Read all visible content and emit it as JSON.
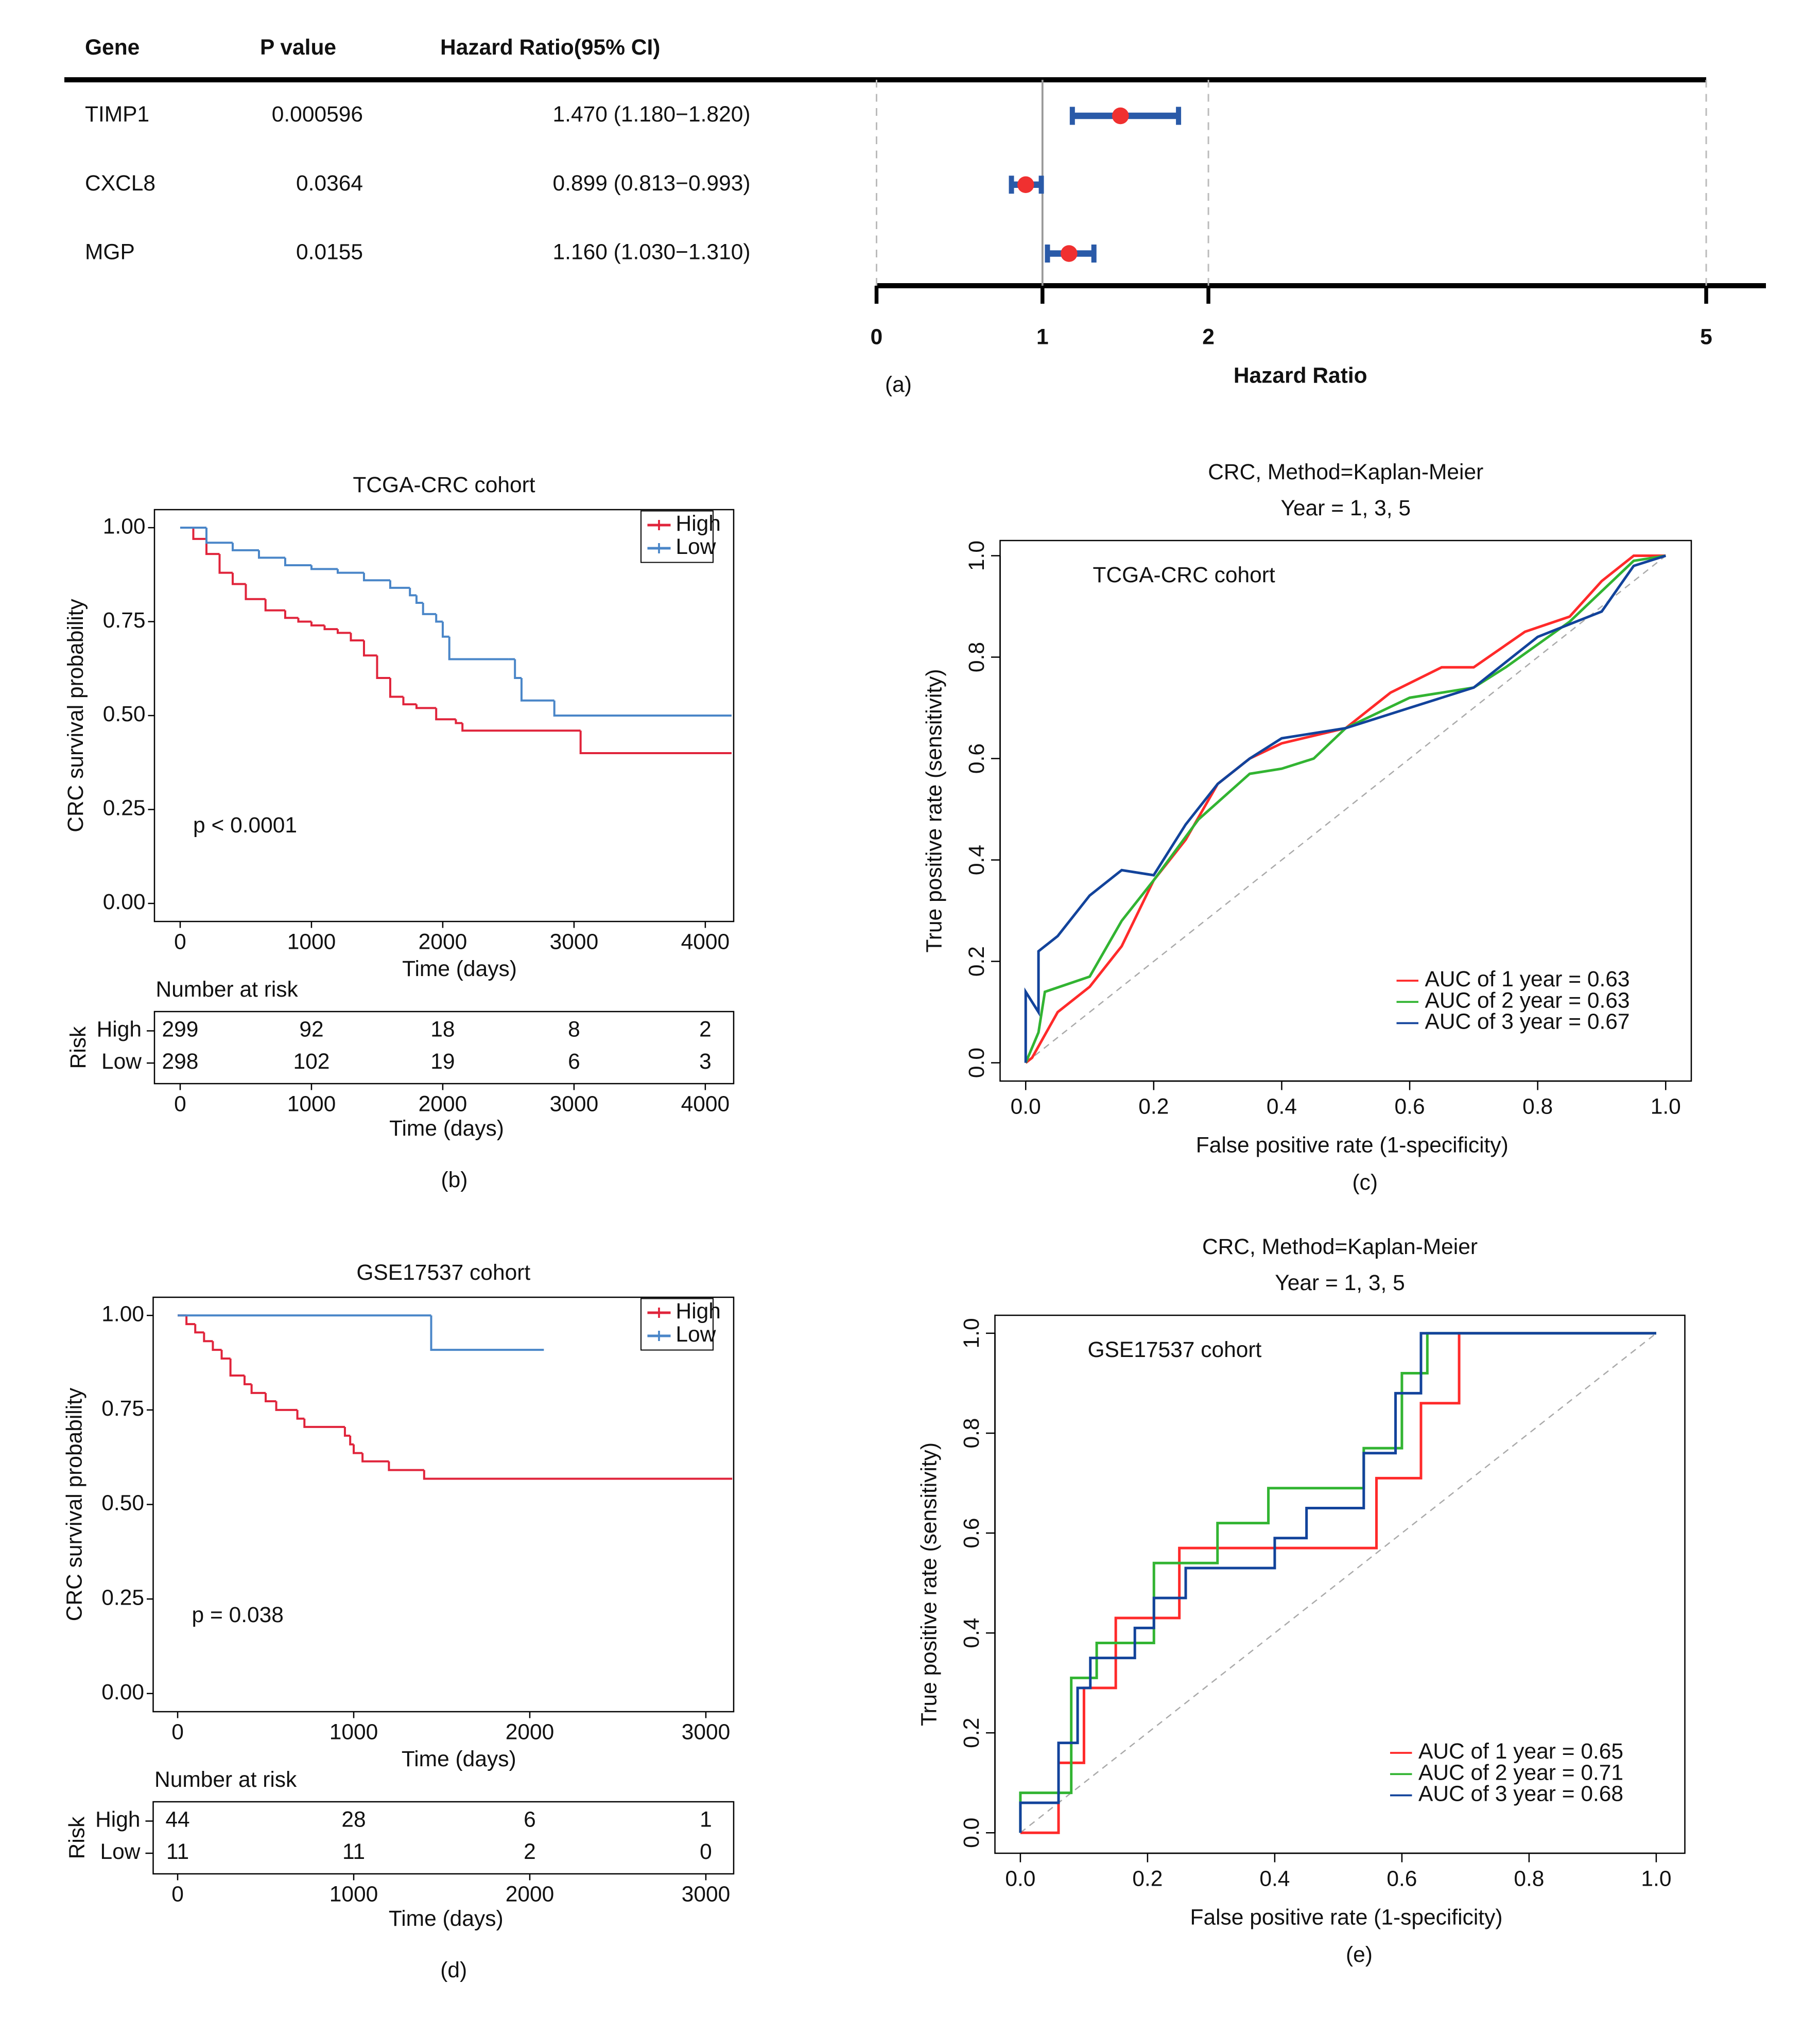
{
  "chart_data": [
    {
      "type": "forest",
      "columns": [
        "Gene",
        "P value",
        "Hazard Ratio(95% CI)"
      ],
      "categories": [
        "TIMP1",
        "CXCL8",
        "MGP"
      ],
      "p_values": [
        0.000596,
        0.0364,
        0.0155
      ],
      "values": [
        1.47,
        0.899,
        1.16
      ],
      "lower": [
        1.18,
        0.813,
        1.03
      ],
      "upper": [
        1.82,
        0.993,
        1.31
      ],
      "value_labels": [
        "1.470 (1.180−1.820)",
        "0.899 (0.813−0.993)",
        "1.160 (1.030−1.310)"
      ],
      "point_color": "#f03030",
      "ci_color": "#2a5aa8",
      "xlabel": "Hazard Ratio",
      "xlim": [
        0,
        5.36
      ],
      "xticks": [
        0,
        1,
        2,
        5
      ],
      "panel": "(a)"
    },
    {
      "type": "km",
      "title": "TCGA-CRC cohort",
      "ylabel": "CRC survival probability",
      "xlabel": "Time (days)",
      "annotation": "p < 0.0001",
      "xlim": [
        -196,
        4216
      ],
      "ylim": [
        -0.048,
        1.048
      ],
      "xticks": [
        0,
        1000,
        2000,
        3000,
        4000
      ],
      "yticks": [
        {
          "value": 0,
          "label": "0.00"
        },
        {
          "value": 0.25,
          "label": "0.25"
        },
        {
          "value": 0.5,
          "label": "0.50"
        },
        {
          "value": 0.75,
          "label": "0.75"
        },
        {
          "value": 1,
          "label": "1.00"
        }
      ],
      "series": [
        {
          "name": "High",
          "color": "#e0243b",
          "x": [
            0,
            100,
            200,
            300,
            400,
            500,
            650,
            800,
            900,
            1000,
            1100,
            1200,
            1300,
            1400,
            1500,
            1600,
            1700,
            1800,
            1950,
            2100,
            2150,
            3050,
            4200
          ],
          "values": [
            1,
            0.97,
            0.93,
            0.88,
            0.85,
            0.81,
            0.78,
            0.76,
            0.75,
            0.74,
            0.73,
            0.72,
            0.7,
            0.66,
            0.6,
            0.55,
            0.53,
            0.52,
            0.49,
            0.48,
            0.46,
            0.4,
            0.4
          ],
          "at_risk": [
            299,
            92,
            18,
            8,
            2
          ]
        },
        {
          "name": "Low",
          "color": "#4a86c8",
          "x": [
            0,
            200,
            400,
            600,
            800,
            1000,
            1200,
            1400,
            1600,
            1750,
            1800,
            1850,
            1950,
            2000,
            2050,
            2500,
            2550,
            2600,
            2850,
            4200
          ],
          "values": [
            1,
            0.96,
            0.94,
            0.92,
            0.9,
            0.89,
            0.88,
            0.86,
            0.84,
            0.82,
            0.8,
            0.77,
            0.75,
            0.71,
            0.65,
            0.65,
            0.6,
            0.54,
            0.5,
            0.5
          ],
          "at_risk": [
            298,
            102,
            19,
            6,
            3
          ]
        }
      ],
      "risk": {
        "title": "Number at risk",
        "ylabel": "Risk",
        "xlabel": "Time (days)"
      },
      "panel": "(b)"
    },
    {
      "type": "roc",
      "title": "CRC, Method=Kaplan-Meier",
      "subtitle": "Year = 1, 3, 5",
      "annotation": "TCGA-CRC cohort",
      "xlabel": "False positive rate (1-specificity)",
      "ylabel": "True positive rate (sensitivity)",
      "xlim": [
        -0.04,
        1.04
      ],
      "ylim": [
        -0.036,
        1.03
      ],
      "xticks": [
        {
          "value": 0,
          "label": "0.0"
        },
        {
          "value": 0.2,
          "label": "0.2"
        },
        {
          "value": 0.4,
          "label": "0.4"
        },
        {
          "value": 0.6,
          "label": "0.6"
        },
        {
          "value": 0.8,
          "label": "0.8"
        },
        {
          "value": 1,
          "label": "1.0"
        }
      ],
      "yticks": [
        {
          "value": 0,
          "label": "0.0"
        },
        {
          "value": 0.2,
          "label": "0.2"
        },
        {
          "value": 0.4,
          "label": "0.4"
        },
        {
          "value": 0.6,
          "label": "0.6"
        },
        {
          "value": 0.8,
          "label": "0.8"
        },
        {
          "value": 1,
          "label": "1.0"
        }
      ],
      "series": [
        {
          "name": "AUC of 1 year = 0.63",
          "color": "#ff2a2a",
          "x": [
            0,
            0.01,
            0.05,
            0.1,
            0.15,
            0.2,
            0.25,
            0.3,
            0.35,
            0.4,
            0.5,
            0.57,
            0.65,
            0.7,
            0.78,
            0.85,
            0.9,
            0.95,
            1
          ],
          "values": [
            0,
            0.01,
            0.1,
            0.15,
            0.23,
            0.36,
            0.44,
            0.55,
            0.6,
            0.63,
            0.66,
            0.73,
            0.78,
            0.78,
            0.85,
            0.88,
            0.95,
            1,
            1
          ]
        },
        {
          "name": "AUC of 2 year = 0.63",
          "color": "#32b432",
          "x": [
            0,
            0.02,
            0.03,
            0.1,
            0.15,
            0.2,
            0.27,
            0.35,
            0.4,
            0.45,
            0.5,
            0.6,
            0.7,
            0.75,
            0.85,
            0.9,
            0.95,
            1
          ],
          "values": [
            0,
            0.06,
            0.14,
            0.17,
            0.28,
            0.36,
            0.48,
            0.57,
            0.58,
            0.6,
            0.66,
            0.72,
            0.74,
            0.78,
            0.87,
            0.93,
            0.99,
            1
          ]
        },
        {
          "name": "AUC of 3 year = 0.67",
          "color": "#12439b",
          "x": [
            0,
            0,
            0.02,
            0.02,
            0.05,
            0.1,
            0.15,
            0.2,
            0.25,
            0.3,
            0.35,
            0.4,
            0.5,
            0.6,
            0.7,
            0.8,
            0.9,
            0.95,
            1
          ],
          "values": [
            0,
            0.14,
            0.1,
            0.22,
            0.25,
            0.33,
            0.38,
            0.37,
            0.47,
            0.55,
            0.6,
            0.64,
            0.66,
            0.7,
            0.74,
            0.84,
            0.89,
            0.98,
            1
          ]
        }
      ],
      "panel": "(c)"
    },
    {
      "type": "km",
      "title": "GSE17537 cohort",
      "ylabel": "CRC survival probability",
      "xlabel": "Time (days)",
      "annotation": "p = 0.038",
      "xlim": [
        -139,
        3158
      ],
      "ylim": [
        -0.048,
        1.048
      ],
      "xticks": [
        0,
        1000,
        2000,
        3000
      ],
      "yticks": [
        {
          "value": 0,
          "label": "0.00"
        },
        {
          "value": 0.25,
          "label": "0.25"
        },
        {
          "value": 0.5,
          "label": "0.50"
        },
        {
          "value": 0.75,
          "label": "0.75"
        },
        {
          "value": 1,
          "label": "1.00"
        }
      ],
      "series": [
        {
          "name": "High",
          "color": "#e0243b",
          "x": [
            0,
            50,
            100,
            150,
            200,
            250,
            300,
            380,
            420,
            500,
            560,
            680,
            720,
            950,
            980,
            1000,
            1050,
            1200,
            1400,
            3150
          ],
          "values": [
            1,
            0.977,
            0.955,
            0.932,
            0.909,
            0.886,
            0.841,
            0.818,
            0.795,
            0.773,
            0.75,
            0.727,
            0.705,
            0.682,
            0.659,
            0.636,
            0.614,
            0.591,
            0.568,
            0.568
          ],
          "at_risk": [
            44,
            28,
            6,
            1
          ]
        },
        {
          "name": "Low",
          "color": "#4a86c8",
          "x": [
            0,
            1440,
            2080
          ],
          "values": [
            1,
            0.909,
            0.909
          ],
          "at_risk": [
            11,
            11,
            2,
            0
          ]
        }
      ],
      "risk": {
        "title": "Number at risk",
        "ylabel": "Risk",
        "xlabel": "Time (days)"
      },
      "panel": "(d)"
    },
    {
      "type": "roc",
      "title": "CRC, Method=Kaplan-Meier",
      "subtitle": "Year = 1, 3, 5",
      "annotation": "GSE17537 cohort",
      "xlabel": "False positive rate (1-specificity)",
      "ylabel": "True positive rate (sensitivity)",
      "xlim": [
        -0.04,
        1.045
      ],
      "ylim": [
        -0.041,
        1.036
      ],
      "xticks": [
        {
          "value": 0,
          "label": "0.0"
        },
        {
          "value": 0.2,
          "label": "0.2"
        },
        {
          "value": 0.4,
          "label": "0.4"
        },
        {
          "value": 0.6,
          "label": "0.6"
        },
        {
          "value": 0.8,
          "label": "0.8"
        },
        {
          "value": 1,
          "label": "1.0"
        }
      ],
      "yticks": [
        {
          "value": 0,
          "label": "0.0"
        },
        {
          "value": 0.2,
          "label": "0.2"
        },
        {
          "value": 0.4,
          "label": "0.4"
        },
        {
          "value": 0.6,
          "label": "0.6"
        },
        {
          "value": 0.8,
          "label": "0.8"
        },
        {
          "value": 1,
          "label": "1.0"
        }
      ],
      "series": [
        {
          "name": "AUC of 1 year = 0.65",
          "color": "#ff2a2a",
          "x": [
            0,
            0.06,
            0.06,
            0.1,
            0.1,
            0.15,
            0.15,
            0.25,
            0.25,
            0.56,
            0.56,
            0.63,
            0.63,
            0.69,
            0.69,
            1
          ],
          "values": [
            0,
            0,
            0.14,
            0.14,
            0.29,
            0.29,
            0.43,
            0.43,
            0.57,
            0.57,
            0.71,
            0.71,
            0.86,
            0.86,
            1,
            1
          ]
        },
        {
          "name": "AUC of 2 year = 0.71",
          "color": "#32b432",
          "x": [
            0,
            0,
            0.08,
            0.08,
            0.12,
            0.12,
            0.21,
            0.21,
            0.31,
            0.31,
            0.39,
            0.39,
            0.54,
            0.54,
            0.6,
            0.6,
            0.64,
            0.64,
            1
          ],
          "values": [
            0,
            0.08,
            0.08,
            0.31,
            0.31,
            0.38,
            0.38,
            0.54,
            0.54,
            0.62,
            0.62,
            0.69,
            0.69,
            0.77,
            0.77,
            0.92,
            0.92,
            1,
            1
          ]
        },
        {
          "name": "AUC of 3 year = 0.68",
          "color": "#12439b",
          "x": [
            0,
            0,
            0.06,
            0.06,
            0.09,
            0.09,
            0.11,
            0.11,
            0.18,
            0.18,
            0.21,
            0.21,
            0.26,
            0.26,
            0.4,
            0.4,
            0.45,
            0.45,
            0.54,
            0.54,
            0.59,
            0.59,
            0.63,
            0.63,
            1
          ],
          "values": [
            0,
            0.06,
            0.06,
            0.18,
            0.18,
            0.29,
            0.29,
            0.35,
            0.35,
            0.41,
            0.41,
            0.47,
            0.47,
            0.53,
            0.53,
            0.59,
            0.59,
            0.65,
            0.65,
            0.76,
            0.76,
            0.88,
            0.88,
            1,
            1
          ]
        }
      ],
      "panel": "(e)"
    }
  ]
}
